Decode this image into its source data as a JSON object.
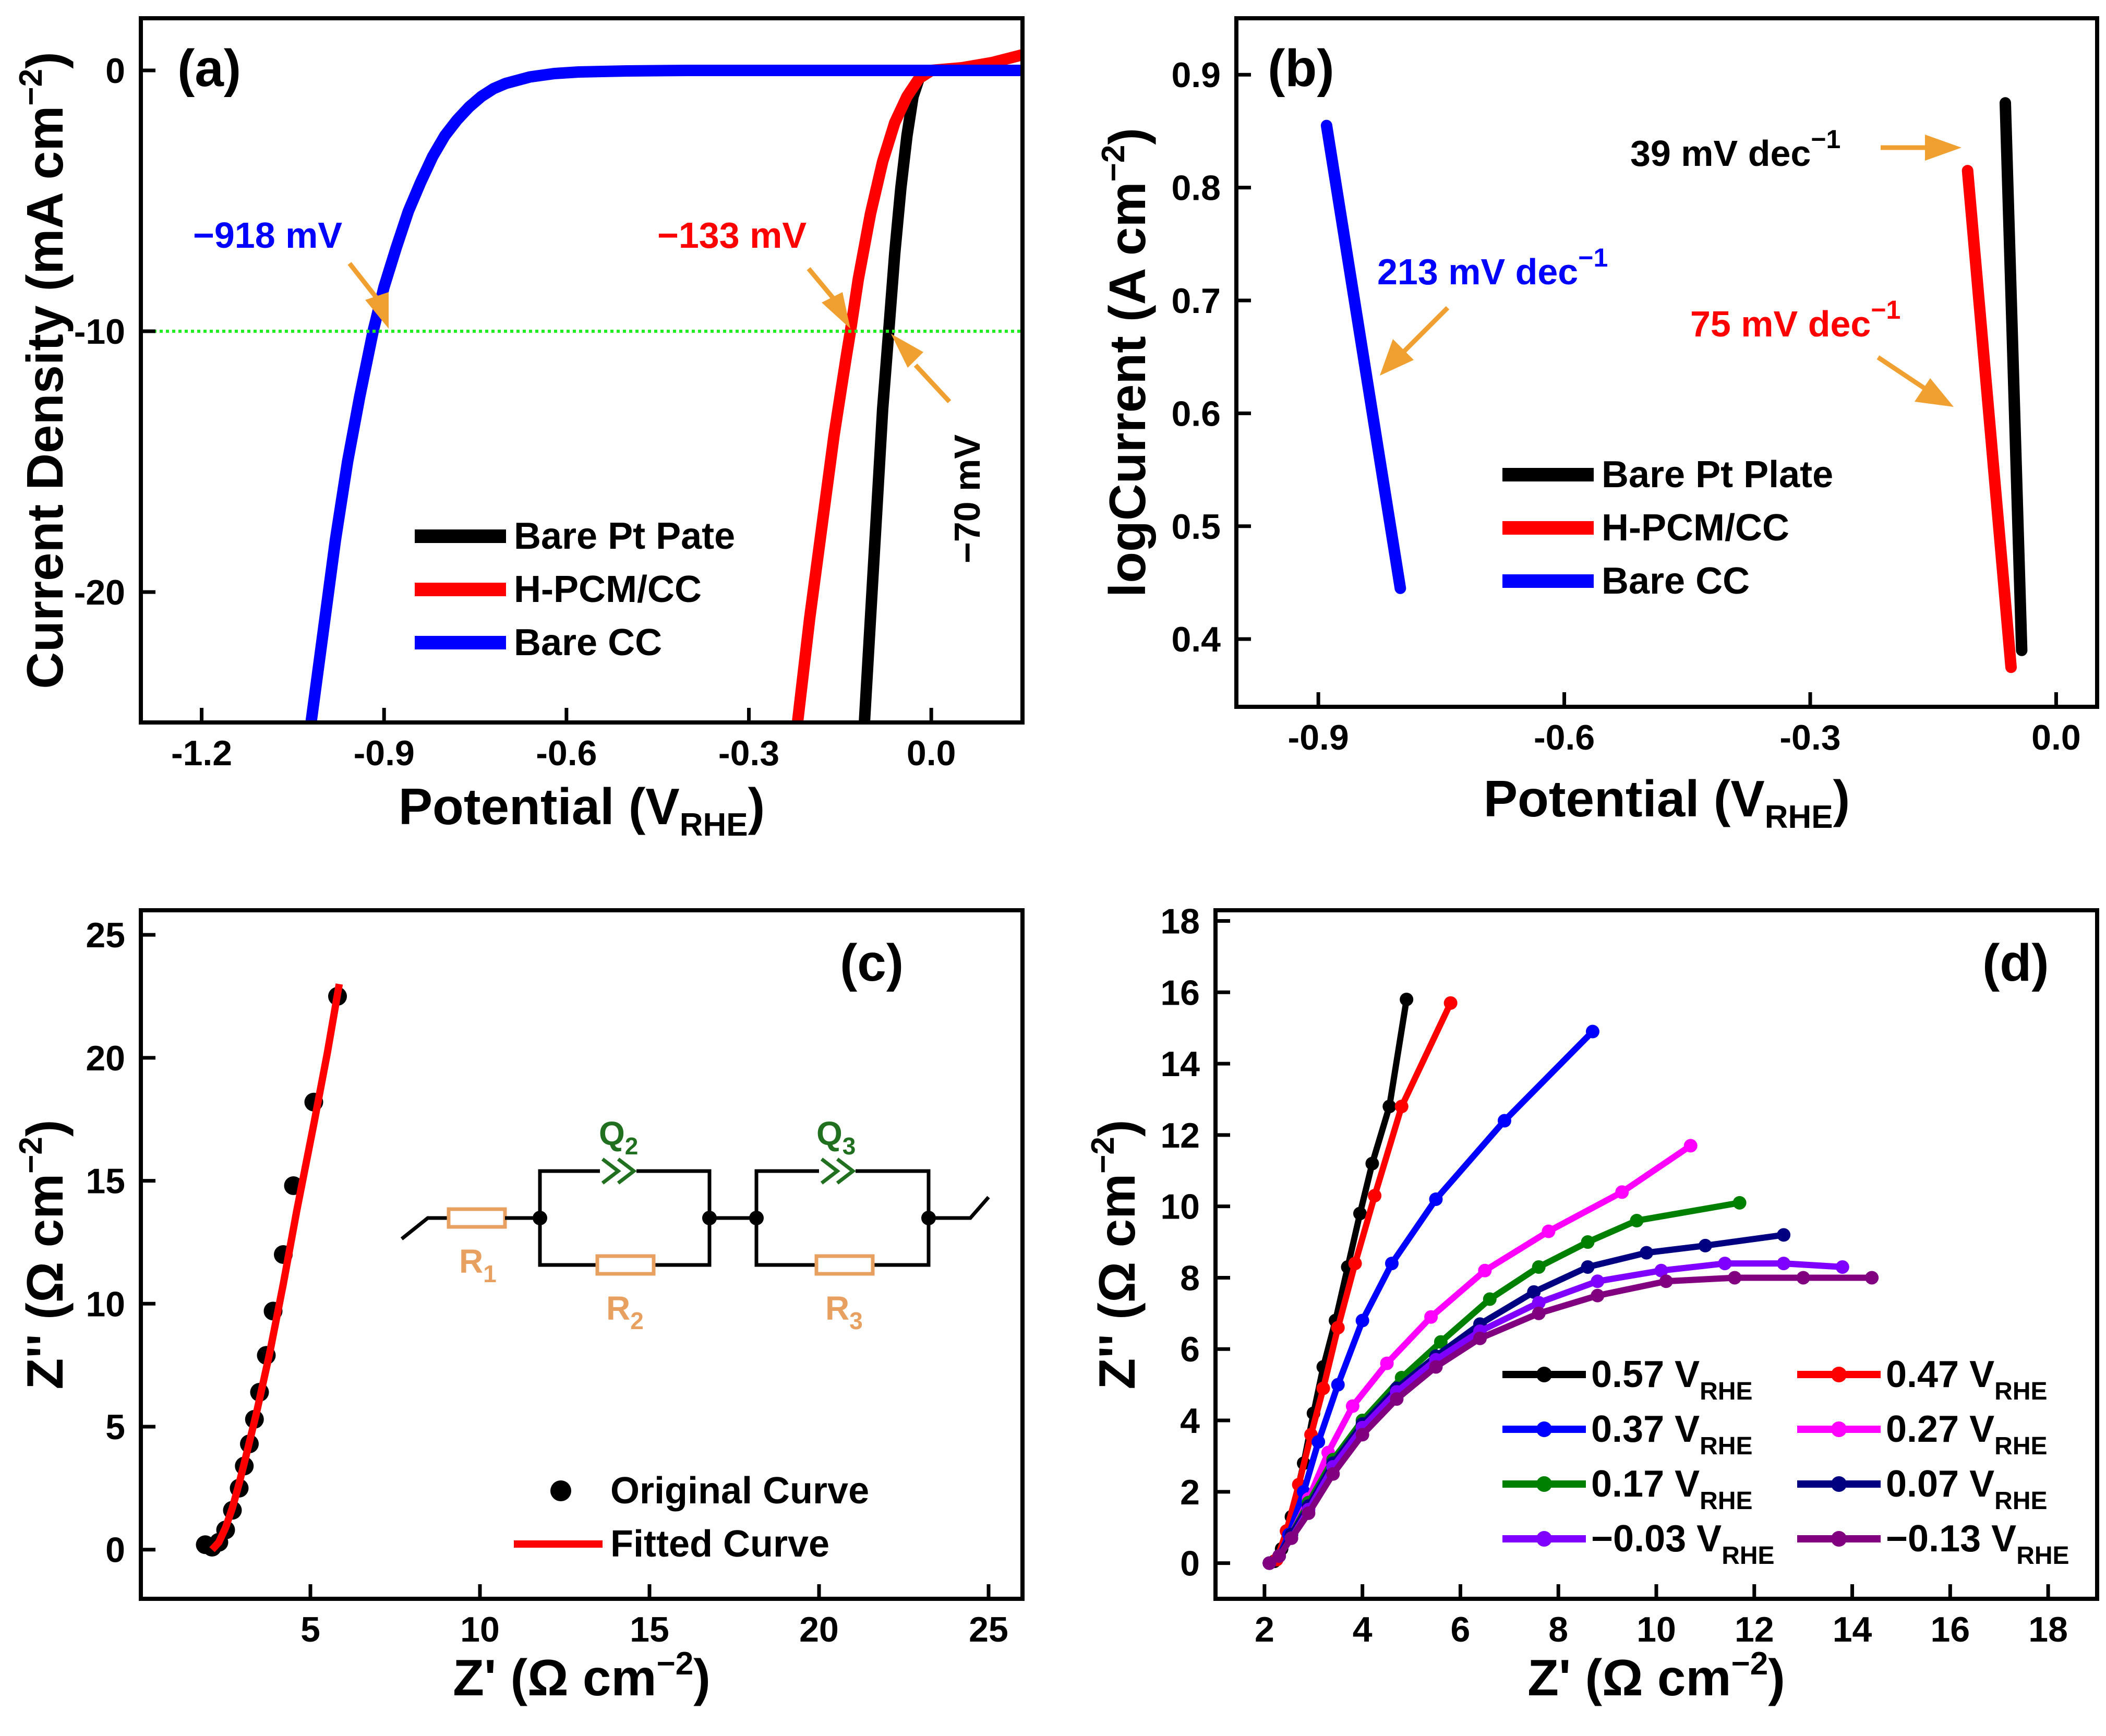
{
  "colors": {
    "black": "#000000",
    "red": "#ff0000",
    "blue": "#0000ff",
    "magenta": "#ff00ff",
    "green": "#008000",
    "navy": "#000080",
    "violet": "#8000ff",
    "purple": "#800080",
    "orange": "#f0a030",
    "circuit": "#e8a060",
    "dkgreen": "#207020",
    "guide": "#22ee22"
  },
  "chart_data": [
    {
      "panel": "(a)",
      "type": "line",
      "xlabel": "Potential (V",
      "xlabel_sub": "RHE",
      "xlabel_end": ")",
      "ylabel": "Current Density (mA cm",
      "ylabel_sup": "−2",
      "ylabel_end": ")",
      "xlim": [
        -1.3,
        0.15
      ],
      "ylim": [
        -25,
        2
      ],
      "xticks": [
        -1.2,
        -0.9,
        -0.6,
        -0.3,
        0.0
      ],
      "xtick_labels": [
        "-1.2",
        "-0.9",
        "-0.6",
        "-0.3",
        "0.0"
      ],
      "yticks": [
        0,
        -10,
        -20
      ],
      "ytick_labels": [
        "0",
        "-10",
        "-20"
      ],
      "guide_y": -10,
      "series": [
        {
          "name": "Bare Pt Pate",
          "color": "#000000",
          "x": [
            -0.11,
            -0.1,
            -0.09,
            -0.08,
            -0.07,
            -0.06,
            -0.05,
            -0.04,
            -0.03,
            -0.02,
            0.0,
            0.05,
            0.15
          ],
          "y": [
            -25,
            -21,
            -17,
            -13,
            -10,
            -7,
            -4.5,
            -2.5,
            -1.0,
            -0.3,
            0,
            0,
            0
          ]
        },
        {
          "name": "H-PCM/CC",
          "color": "#ff0000",
          "x": [
            -0.22,
            -0.2,
            -0.18,
            -0.16,
            -0.14,
            -0.133,
            -0.12,
            -0.1,
            -0.08,
            -0.06,
            -0.04,
            -0.02,
            0.0,
            0.05,
            0.1,
            0.15
          ],
          "y": [
            -25,
            -21,
            -17.5,
            -14,
            -11,
            -10,
            -8,
            -5.5,
            -3.5,
            -2.0,
            -1.0,
            -0.3,
            0,
            0.1,
            0.3,
            0.6
          ]
        },
        {
          "name": "Bare CC",
          "color": "#0000ff",
          "x": [
            -1.02,
            -1.0,
            -0.98,
            -0.96,
            -0.94,
            -0.918,
            -0.9,
            -0.88,
            -0.86,
            -0.84,
            -0.82,
            -0.8,
            -0.78,
            -0.76,
            -0.74,
            -0.72,
            -0.7,
            -0.66,
            -0.62,
            -0.58,
            -0.5,
            -0.4,
            -0.2,
            0.0,
            0.15
          ],
          "y": [
            -25,
            -21.5,
            -18,
            -15,
            -12.5,
            -10,
            -8.3,
            -6.8,
            -5.4,
            -4.3,
            -3.3,
            -2.5,
            -1.9,
            -1.4,
            -1.0,
            -0.7,
            -0.5,
            -0.25,
            -0.12,
            -0.06,
            -0.02,
            0,
            0,
            0,
            0
          ]
        }
      ],
      "annotations": [
        {
          "text": "−918 mV",
          "color": "#0000ff"
        },
        {
          "text": "−133 mV",
          "color": "#ff0000"
        },
        {
          "text": "−70 mV",
          "color": "#000000"
        }
      ]
    },
    {
      "panel": "(b)",
      "type": "line",
      "xlabel": "Potential (V",
      "xlabel_sub": "RHE",
      "xlabel_end": ")",
      "ylabel": "logCurrent (A cm",
      "ylabel_sup": "−2",
      "ylabel_end": ")",
      "xlim": [
        -1.0,
        0.05
      ],
      "ylim": [
        0.34,
        0.95
      ],
      "xticks": [
        -0.9,
        -0.6,
        -0.3,
        0.0
      ],
      "xtick_labels": [
        "-0.9",
        "-0.6",
        "-0.3",
        "0.0"
      ],
      "yticks": [
        0.4,
        0.5,
        0.6,
        0.7,
        0.8,
        0.9
      ],
      "ytick_labels": [
        "0.4",
        "0.5",
        "0.6",
        "0.7",
        "0.8",
        "0.9"
      ],
      "series": [
        {
          "name": "Bare Pt Plate",
          "color": "#000000",
          "x": [
            -0.062,
            -0.042
          ],
          "y": [
            0.875,
            0.39
          ]
        },
        {
          "name": "H-PCM/CC",
          "color": "#ff0000",
          "x": [
            -0.108,
            -0.055
          ],
          "y": [
            0.815,
            0.375
          ]
        },
        {
          "name": "Bare CC",
          "color": "#0000ff",
          "x": [
            -0.89,
            -0.8
          ],
          "y": [
            0.855,
            0.445
          ]
        }
      ],
      "annotations": [
        {
          "text": "39 mV dec",
          "sup": "−1",
          "color": "#000000"
        },
        {
          "text": "75 mV dec",
          "sup": "−1",
          "color": "#ff0000"
        },
        {
          "text": "213 mV dec",
          "sup": "−1",
          "color": "#0000ff"
        }
      ]
    },
    {
      "panel": "(c)",
      "type": "scatter",
      "xlabel": "Z' (Ω cm",
      "xlabel_sup": "−2",
      "xlabel_end": ")",
      "ylabel": "Z'' (Ω cm",
      "ylabel_sup": "−2",
      "ylabel_end": ")",
      "xlim": [
        0,
        26
      ],
      "ylim": [
        -2,
        26
      ],
      "xticks": [
        5,
        10,
        15,
        20,
        25
      ],
      "xtick_labels": [
        "5",
        "10",
        "15",
        "20",
        "25"
      ],
      "yticks": [
        0,
        5,
        10,
        15,
        20,
        25
      ],
      "ytick_labels": [
        "0",
        "5",
        "10",
        "15",
        "20",
        "25"
      ],
      "series": [
        {
          "name": "Original Curve",
          "color": "#000000",
          "marker": "circle",
          "x": [
            1.9,
            2.1,
            2.3,
            2.5,
            2.7,
            2.9,
            3.05,
            3.2,
            3.35,
            3.5,
            3.7,
            3.9,
            4.2,
            4.5,
            5.1,
            5.8
          ],
          "y": [
            0.2,
            0.1,
            0.3,
            0.8,
            1.6,
            2.5,
            3.4,
            4.3,
            5.3,
            6.4,
            7.9,
            9.7,
            12.0,
            14.8,
            18.2,
            22.5
          ]
        },
        {
          "name": "Fitted Curve",
          "color": "#ff0000",
          "marker": "line",
          "x": [
            2.1,
            2.3,
            2.5,
            2.7,
            2.9,
            3.1,
            3.4,
            3.8,
            4.2,
            4.6,
            5.1,
            5.5,
            5.85
          ],
          "y": [
            0.0,
            0.3,
            0.9,
            1.7,
            2.7,
            3.8,
            5.5,
            8.0,
            10.8,
            13.8,
            17.3,
            20.2,
            23.0
          ]
        }
      ],
      "circuit": {
        "q2": "Q",
        "q2_sub": "2",
        "q3": "Q",
        "q3_sub": "3",
        "r1": "R",
        "r1_sub": "1",
        "r2": "R",
        "r2_sub": "2",
        "r3": "R",
        "r3_sub": "3"
      }
    },
    {
      "panel": "(d)",
      "type": "line",
      "xlabel": "Z' (Ω cm",
      "xlabel_sup": "−2",
      "xlabel_end": ")",
      "ylabel": "Z'' (Ω cm",
      "ylabel_sup": "−2",
      "ylabel_end": ")",
      "xlim": [
        1,
        19
      ],
      "ylim": [
        -1,
        18.3
      ],
      "xticks": [
        2,
        4,
        6,
        8,
        10,
        12,
        14,
        16,
        18
      ],
      "xtick_labels": [
        "2",
        "4",
        "6",
        "8",
        "10",
        "12",
        "14",
        "16",
        "18"
      ],
      "yticks": [
        0,
        2,
        4,
        6,
        8,
        10,
        12,
        14,
        16,
        18
      ],
      "ytick_labels": [
        "0",
        "2",
        "4",
        "6",
        "8",
        "10",
        "12",
        "14",
        "16",
        "18"
      ],
      "legend_sub": "RHE",
      "series": [
        {
          "name": "0.57 V",
          "color": "#000000",
          "x": [
            2.1,
            2.2,
            2.35,
            2.55,
            2.8,
            3.0,
            3.2,
            3.45,
            3.7,
            3.95,
            4.2,
            4.55,
            4.9
          ],
          "y": [
            0.0,
            0.05,
            0.4,
            1.3,
            2.8,
            4.2,
            5.5,
            6.8,
            8.3,
            9.8,
            11.2,
            12.8,
            15.8
          ]
        },
        {
          "name": "0.47 V",
          "color": "#ff0000",
          "x": [
            2.1,
            2.25,
            2.45,
            2.7,
            2.95,
            3.2,
            3.5,
            3.85,
            4.25,
            4.8,
            5.8
          ],
          "y": [
            0.0,
            0.1,
            0.9,
            2.2,
            3.6,
            4.9,
            6.6,
            8.4,
            10.3,
            12.8,
            15.7
          ]
        },
        {
          "name": "0.37 V",
          "color": "#0000ff",
          "x": [
            2.1,
            2.3,
            2.5,
            2.8,
            3.1,
            3.5,
            4.0,
            4.6,
            5.5,
            6.9,
            8.7
          ],
          "y": [
            0.0,
            0.2,
            0.8,
            2.0,
            3.4,
            5.0,
            6.8,
            8.4,
            10.2,
            12.4,
            14.9
          ]
        },
        {
          "name": "0.27 V",
          "color": "#ff00ff",
          "x": [
            2.1,
            2.3,
            2.55,
            2.9,
            3.3,
            3.8,
            4.5,
            5.4,
            6.5,
            7.8,
            9.3,
            10.7
          ],
          "y": [
            0.0,
            0.2,
            0.8,
            1.8,
            3.1,
            4.4,
            5.6,
            6.9,
            8.2,
            9.3,
            10.4,
            11.7
          ]
        },
        {
          "name": "0.17 V",
          "color": "#008000",
          "x": [
            2.1,
            2.3,
            2.55,
            2.9,
            3.4,
            4.0,
            4.8,
            5.6,
            6.6,
            7.6,
            8.6,
            9.6,
            11.7
          ],
          "y": [
            0.0,
            0.2,
            0.8,
            1.7,
            2.9,
            4.0,
            5.2,
            6.2,
            7.4,
            8.3,
            9.0,
            9.6,
            10.1
          ]
        },
        {
          "name": "0.07 V",
          "color": "#000080",
          "x": [
            2.1,
            2.3,
            2.55,
            2.9,
            3.4,
            4.0,
            4.7,
            5.5,
            6.4,
            7.5,
            8.6,
            9.8,
            11.0,
            12.6
          ],
          "y": [
            0.0,
            0.2,
            0.8,
            1.6,
            2.8,
            3.9,
            4.9,
            5.8,
            6.7,
            7.6,
            8.3,
            8.7,
            8.9,
            9.2
          ]
        },
        {
          "name": "−0.03 V",
          "color": "#8000ff",
          "x": [
            2.1,
            2.3,
            2.55,
            2.9,
            3.4,
            4.0,
            4.7,
            5.5,
            6.4,
            7.6,
            8.8,
            10.1,
            11.4,
            12.6,
            13.8
          ],
          "y": [
            0.0,
            0.2,
            0.7,
            1.5,
            2.7,
            3.8,
            4.8,
            5.7,
            6.5,
            7.3,
            7.9,
            8.2,
            8.4,
            8.4,
            8.3
          ]
        },
        {
          "name": "−0.13 V",
          "color": "#800080",
          "x": [
            2.1,
            2.3,
            2.55,
            2.9,
            3.4,
            4.0,
            4.7,
            5.5,
            6.4,
            7.6,
            8.8,
            10.2,
            11.6,
            13.0,
            14.4
          ],
          "y": [
            0.0,
            0.2,
            0.7,
            1.4,
            2.5,
            3.6,
            4.6,
            5.5,
            6.3,
            7.0,
            7.5,
            7.9,
            8.0,
            8.0,
            8.0
          ]
        }
      ]
    }
  ]
}
